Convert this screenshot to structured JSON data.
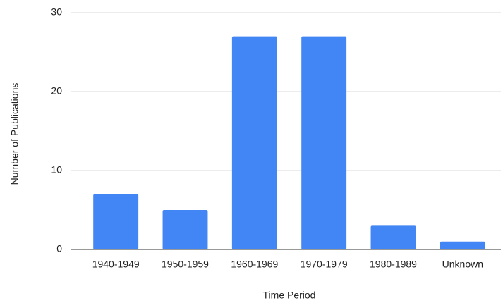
{
  "chart_data": {
    "type": "bar",
    "x_label": "Time Period",
    "y_label": "Number of Publications",
    "categories": [
      "1940-1949",
      "1950-1959",
      "1960-1969",
      "1970-1979",
      "1980-1989",
      "Unknown"
    ],
    "values": [
      7,
      5,
      27,
      27,
      3,
      1
    ],
    "color": "#4285f4",
    "ylim": [
      0,
      30
    ],
    "yticks": [
      0,
      10,
      20,
      30
    ],
    "grid": true
  }
}
